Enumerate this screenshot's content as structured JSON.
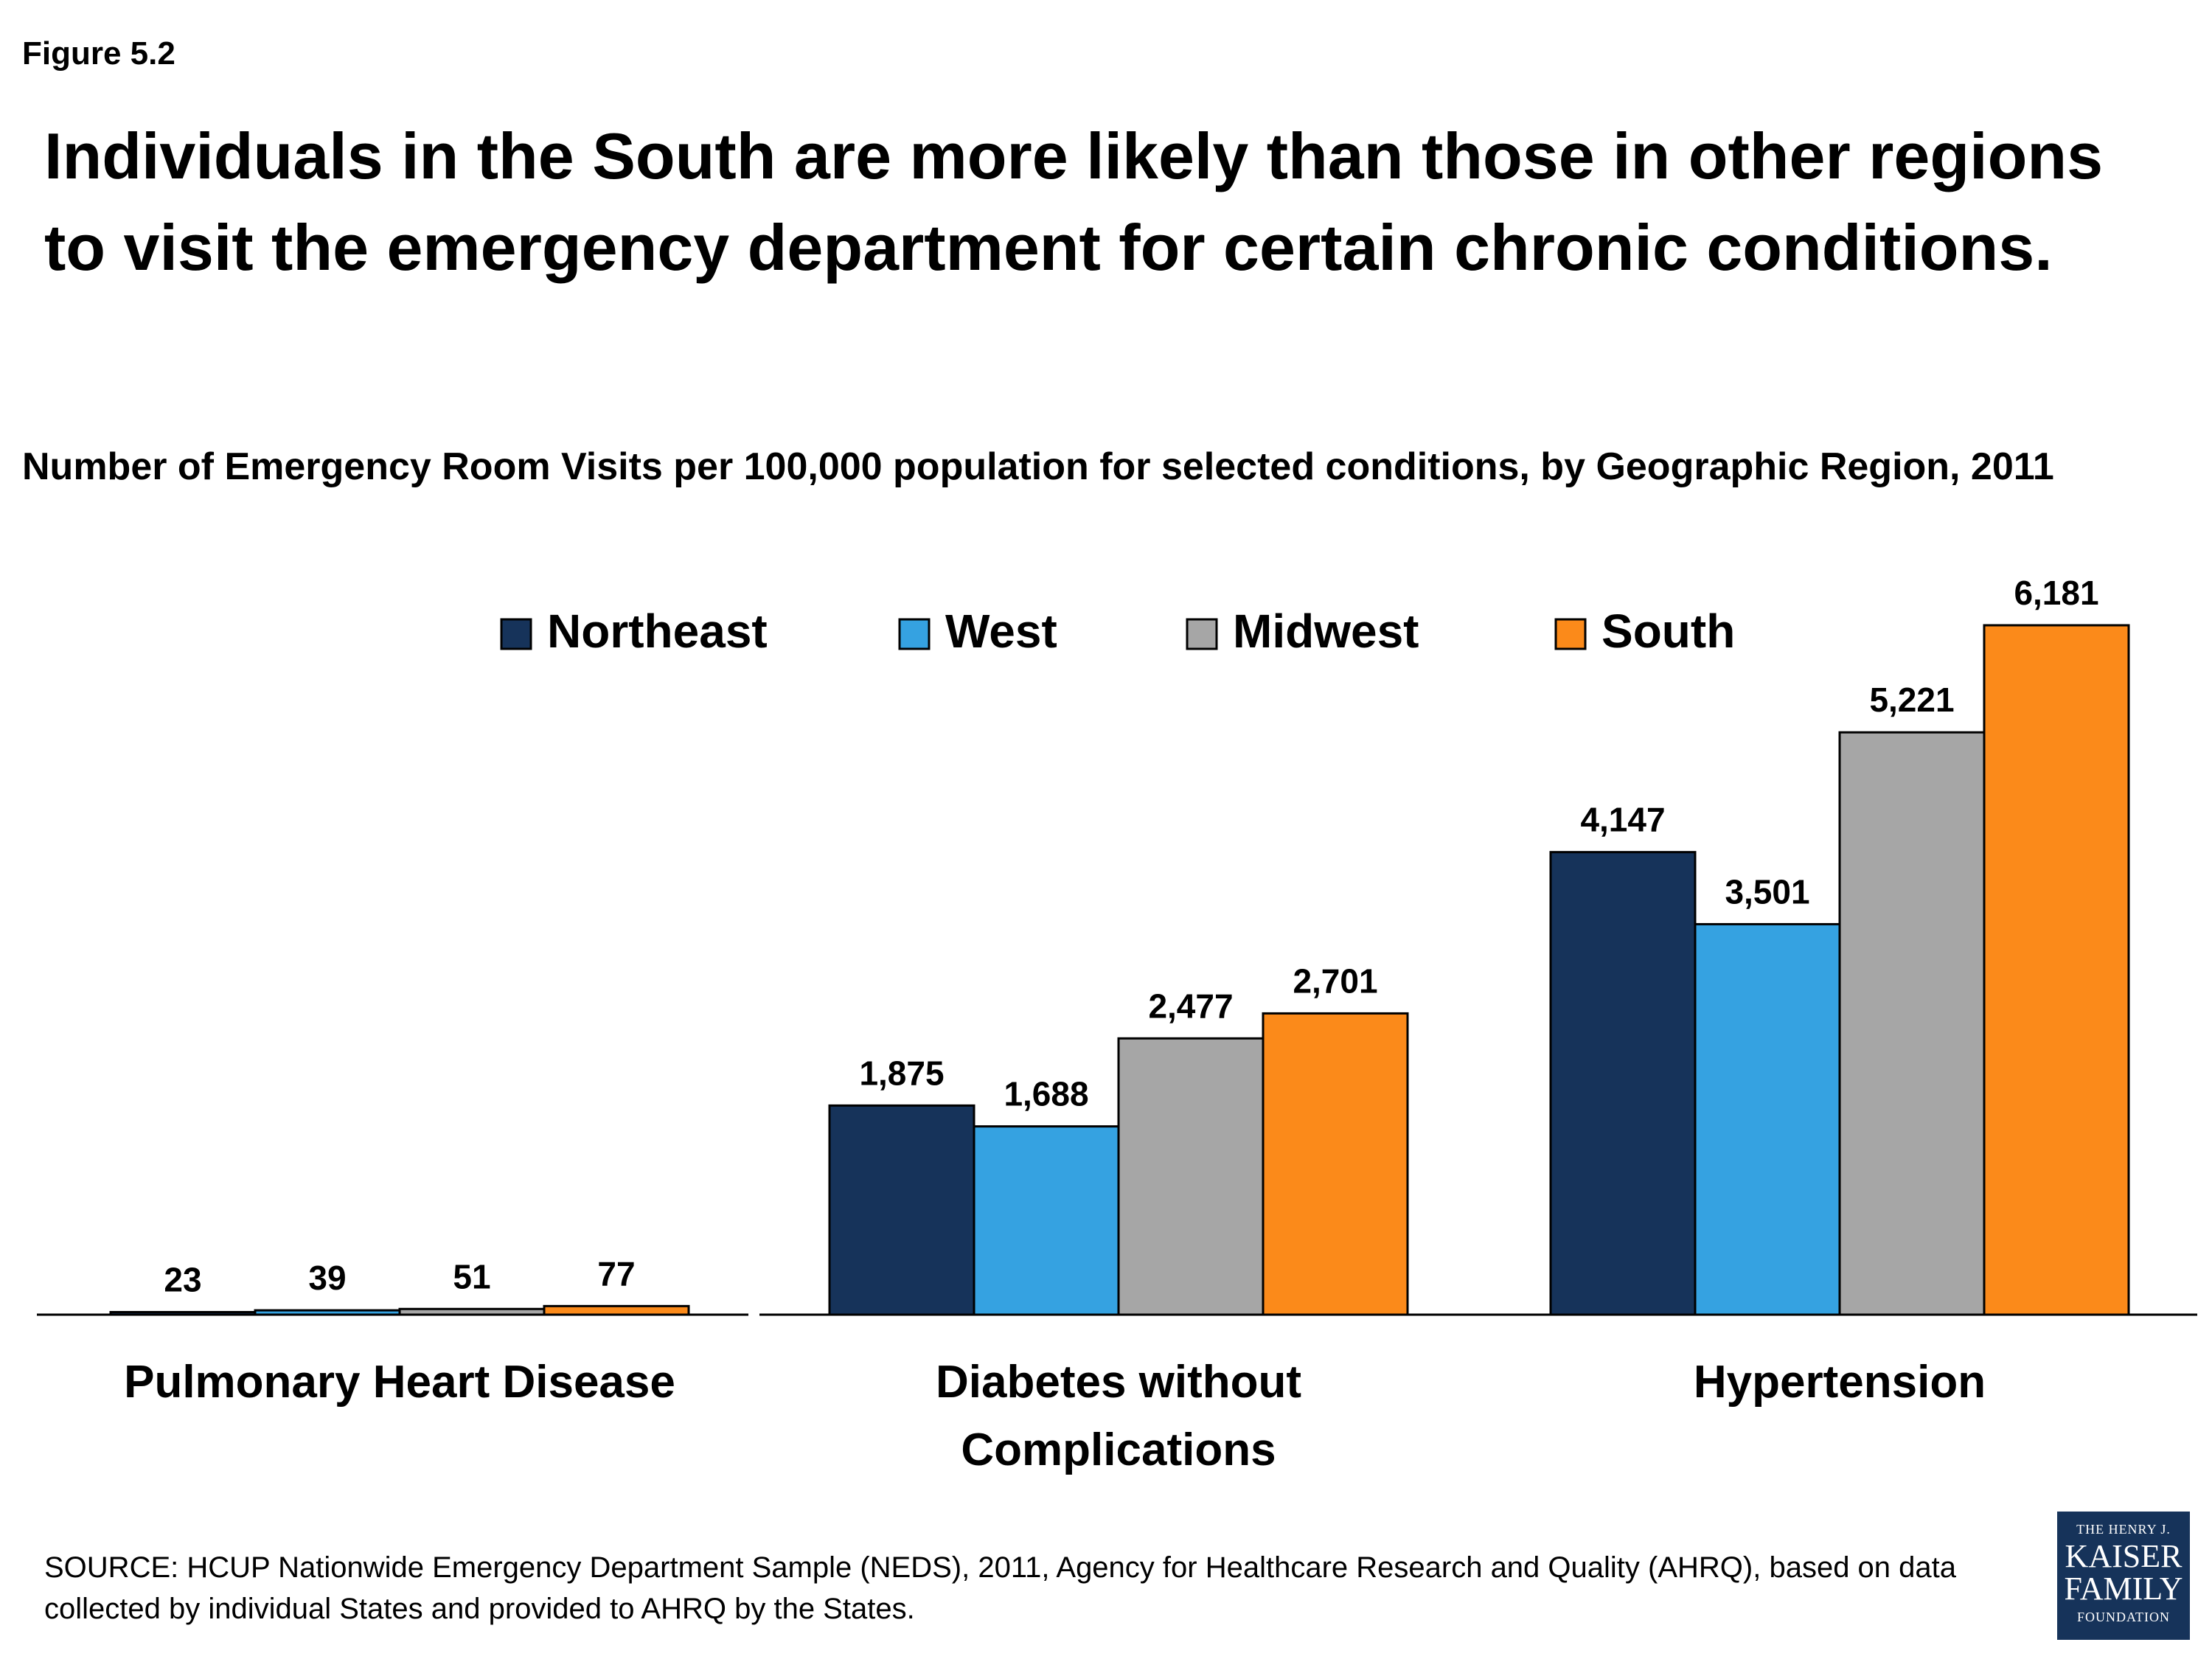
{
  "figure_label": "Figure 5.2",
  "headline": "Individuals in the South are more likely than those in other regions to visit the emergency department for certain chronic conditions.",
  "source": "SOURCE: HCUP Nationwide Emergency Department Sample (NEDS), 2011, Agency for Healthcare Research and Quality (AHRQ), based on data collected by individual States and provided to AHRQ by the States.",
  "logo": {
    "line1": "THE HENRY J.",
    "line2": "KAISER",
    "line3": "FAMILY",
    "line4": "FOUNDATION",
    "color": "#16335a"
  },
  "chart_data": {
    "type": "bar",
    "title": "Number of Emergency Room Visits per 100,000 population for selected conditions, by Geographic Region, 2011",
    "categories": [
      [
        "Pulmonary Heart Disease"
      ],
      [
        "Diabetes without",
        "Complications"
      ],
      [
        "Hypertension"
      ]
    ],
    "series": [
      {
        "name": "Northeast",
        "color": "#16335a",
        "values": [
          23,
          1875,
          4147
        ],
        "labels": [
          "23",
          "1,875",
          "4,147"
        ]
      },
      {
        "name": "West",
        "color": "#35a2e1",
        "values": [
          39,
          1688,
          3501
        ],
        "labels": [
          "39",
          "1,688",
          "3,501"
        ]
      },
      {
        "name": "Midwest",
        "color": "#a6a6a6",
        "values": [
          51,
          2477,
          5221
        ],
        "labels": [
          "51",
          "2,477",
          "5,221"
        ]
      },
      {
        "name": "South",
        "color": "#fb8a1a",
        "values": [
          77,
          2701,
          6181
        ],
        "labels": [
          "77",
          "2,701",
          "6,181"
        ]
      }
    ],
    "ylim": [
      0,
      6181
    ],
    "grid": false,
    "legend": "top-center",
    "xlabel": "",
    "ylabel": ""
  }
}
